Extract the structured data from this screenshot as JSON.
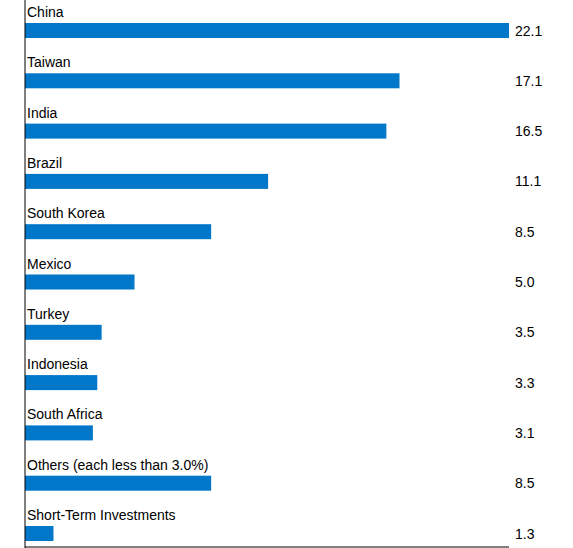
{
  "chart_data": {
    "type": "bar",
    "orientation": "horizontal",
    "categories": [
      "China",
      "Taiwan",
      "India",
      "Brazil",
      "South Korea",
      "Mexico",
      "Turkey",
      "Indonesia",
      "South Africa",
      "Others (each less than 3.0%)",
      "Short-Term Investments"
    ],
    "values": [
      22.1,
      17.1,
      16.5,
      11.1,
      8.5,
      5.0,
      3.5,
      3.3,
      3.1,
      8.5,
      1.3
    ],
    "value_labels": [
      "22.1",
      "17.1",
      "16.5",
      "11.1",
      "8.5",
      "5.0",
      "3.5",
      "3.3",
      "3.1",
      "8.5",
      "1.3"
    ],
    "color": "#0077c8",
    "xlim": [
      0,
      22.1
    ],
    "data_labels": true,
    "tick_labels": false,
    "grid": false
  }
}
